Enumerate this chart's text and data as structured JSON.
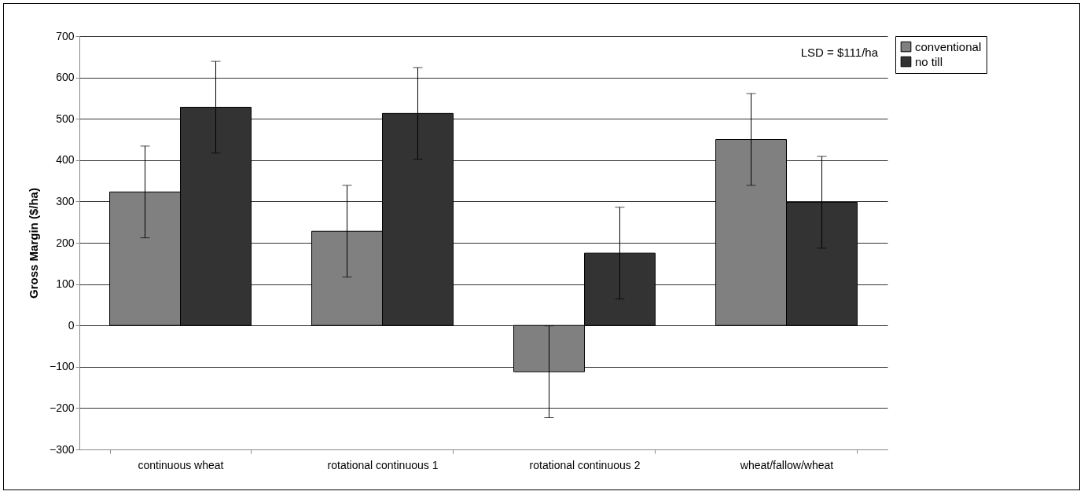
{
  "chart_data": {
    "type": "bar",
    "ylabel": "Gross Margin ($/ha)",
    "categories": [
      "continuous wheat",
      "rotational continuous 1",
      "rotational continuous 2",
      "wheat/fallow/wheat"
    ],
    "series": [
      {
        "name": "conventional",
        "color": "#808080",
        "values": [
          323,
          228,
          -112,
          450
        ],
        "errors": [
          111,
          111,
          111,
          111
        ]
      },
      {
        "name": "no till",
        "color": "#333333",
        "values": [
          528,
          513,
          175,
          298
        ],
        "errors": [
          111,
          111,
          111,
          111
        ]
      }
    ],
    "ylim": [
      -300,
      700
    ],
    "yticks": [
      -300,
      -200,
      -100,
      0,
      100,
      200,
      300,
      400,
      500,
      600,
      700
    ],
    "grid": "y",
    "legend": "right",
    "annotations": [
      "LSD = $111/ha"
    ]
  }
}
